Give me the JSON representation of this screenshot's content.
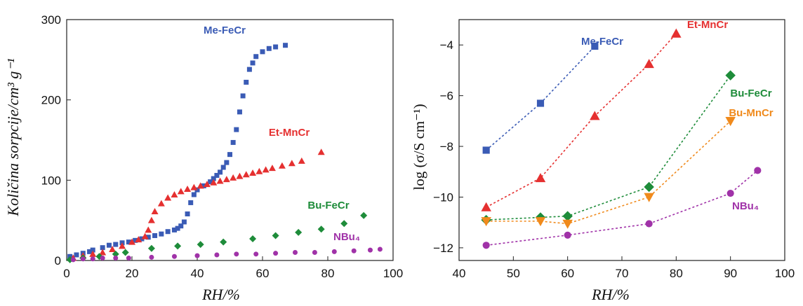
{
  "chart_data": [
    {
      "type": "scatter",
      "xlabel": "RH/%",
      "ylabel": "Količina sorpcije/cm³ g⁻¹",
      "xlim": [
        0,
        100
      ],
      "ylim": [
        0,
        300
      ],
      "xticks": [
        0,
        20,
        40,
        60,
        80,
        100
      ],
      "yticks": [
        0,
        100,
        200,
        300
      ],
      "grid": false,
      "series": [
        {
          "name": "Me-FeCr",
          "color": "#3a5bb5",
          "marker": "square",
          "x": [
            1,
            3,
            5,
            7,
            8,
            11,
            13,
            15,
            17,
            19,
            21,
            23,
            25,
            27,
            29,
            31,
            33,
            34,
            35,
            36,
            37,
            38,
            39,
            40,
            42,
            44,
            45,
            46,
            47,
            48,
            49,
            50,
            51,
            52,
            53,
            54,
            55,
            56,
            57,
            58,
            60,
            62,
            64,
            67
          ],
          "y": [
            5,
            7,
            9,
            11,
            13,
            16,
            19,
            20,
            22,
            23,
            25,
            27,
            29,
            31,
            33,
            36,
            38,
            40,
            43,
            48,
            58,
            72,
            82,
            88,
            93,
            98,
            102,
            106,
            110,
            116,
            122,
            132,
            147,
            163,
            185,
            205,
            222,
            238,
            246,
            254,
            260,
            264,
            266,
            268
          ]
        },
        {
          "name": "Et-MnCr",
          "color": "#e53030",
          "marker": "triangle",
          "x": [
            2,
            5,
            8,
            11,
            14,
            17,
            20,
            22,
            24,
            25,
            26,
            27,
            29,
            31,
            33,
            35,
            37,
            39,
            41,
            43,
            45,
            47,
            49,
            51,
            53,
            55,
            57,
            59,
            61,
            63,
            66,
            69,
            72,
            78
          ],
          "y": [
            3,
            6,
            8,
            10,
            14,
            18,
            23,
            26,
            30,
            38,
            50,
            61,
            71,
            78,
            82,
            86,
            89,
            91,
            93,
            95,
            97,
            99,
            101,
            103,
            105,
            107,
            109,
            111,
            113,
            115,
            118,
            121,
            124,
            135
          ]
        },
        {
          "name": "Bu-FeCr",
          "color": "#1e8c3a",
          "marker": "diamond",
          "x": [
            1,
            5,
            10,
            15,
            18,
            26,
            34,
            41,
            48,
            57,
            64,
            71,
            78,
            85,
            91
          ],
          "y": [
            1,
            3,
            5,
            8,
            10,
            15,
            18,
            20,
            23,
            27,
            31,
            35,
            39,
            46,
            56
          ]
        },
        {
          "name": "NBu₄",
          "color": "#a032a8",
          "marker": "circle",
          "x": [
            2,
            5,
            8,
            11,
            15,
            19,
            26,
            33,
            40,
            46,
            52,
            58,
            64,
            70,
            76,
            82,
            88,
            93,
            96
          ],
          "y": [
            1,
            2,
            2,
            3,
            3,
            3,
            4,
            5,
            6,
            7,
            8,
            8,
            9,
            10,
            10,
            11,
            12,
            13,
            14
          ]
        }
      ]
    },
    {
      "type": "line",
      "xlabel": "RH/%",
      "ylabel": "log (σ/S cm⁻¹)",
      "xlim": [
        40,
        100
      ],
      "ylim": [
        -12.5,
        -3
      ],
      "xticks": [
        40,
        50,
        60,
        70,
        80,
        90,
        100
      ],
      "yticks": [
        -12,
        -10,
        -8,
        -6,
        -4
      ],
      "grid": false,
      "series": [
        {
          "name": "Me-FeCr",
          "color": "#3a5bb5",
          "marker": "square",
          "x": [
            45,
            55,
            65
          ],
          "y": [
            -8.15,
            -6.3,
            -4.05
          ]
        },
        {
          "name": "Et-MnCr",
          "color": "#e53030",
          "marker": "triangle",
          "x": [
            45,
            55,
            65,
            75,
            80
          ],
          "y": [
            -10.4,
            -9.25,
            -6.8,
            -4.75,
            -3.55
          ]
        },
        {
          "name": "Bu-FeCr",
          "color": "#1e8c3a",
          "marker": "diamond",
          "x": [
            45,
            55,
            60,
            75,
            90
          ],
          "y": [
            -10.9,
            -10.8,
            -10.75,
            -9.6,
            -5.2
          ]
        },
        {
          "name": "Bu-MnCr",
          "color": "#f08a1c",
          "marker": "triangle-down",
          "x": [
            45,
            55,
            60,
            75,
            90
          ],
          "y": [
            -10.95,
            -10.95,
            -11.05,
            -10.0,
            -7.0
          ]
        },
        {
          "name": "NBu₄",
          "color": "#a032a8",
          "marker": "circle",
          "x": [
            45,
            60,
            75,
            90,
            95
          ],
          "y": [
            -11.9,
            -11.5,
            -11.05,
            -9.85,
            -8.95
          ]
        }
      ]
    }
  ]
}
